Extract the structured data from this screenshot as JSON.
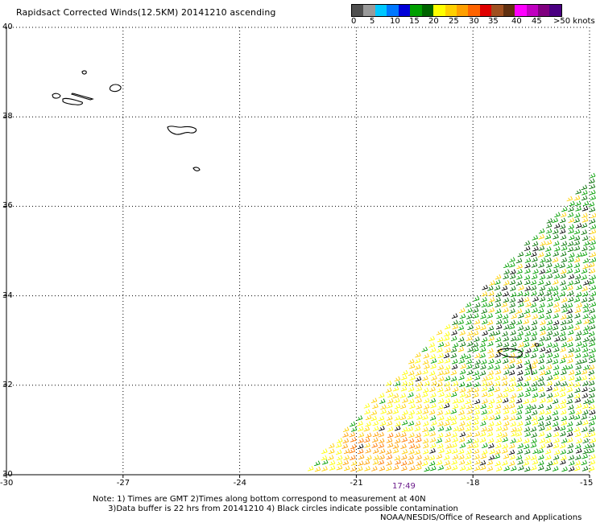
{
  "title": "Rapidsact Corrected Winds(12.5KM) 20141210 ascending",
  "colors": {
    "scale": [
      "#505050",
      "#9a9a9a",
      "#00c8ff",
      "#0078ff",
      "#0000d8",
      "#00a000",
      "#006400",
      "#ffff00",
      "#ffd000",
      "#ffa000",
      "#ff6400",
      "#e00000",
      "#a05020",
      "#603010",
      "#ff00ff",
      "#c000c0",
      "#800080",
      "#4b0082"
    ]
  },
  "scale_labels": [
    "0",
    "5",
    "10",
    "15",
    "20",
    "25",
    "30",
    "35",
    "40",
    "45",
    ">50 knots"
  ],
  "axes": {
    "lat_labels": [
      "40",
      "38",
      "36",
      "34",
      "32",
      "30"
    ],
    "lon_labels": [
      "-30",
      "-27",
      "-24",
      "-21",
      "-18",
      "-15"
    ]
  },
  "time_label": "17:49",
  "notes": [
    "Note: 1) Times are GMT 2)Times along bottom correspond to measurement at 40N",
    "      3)Data buffer is 22 hrs from 20141210 4) Black circles indicate possible contamination"
  ],
  "credit": "NOAA/NESDIS/Office of Research and Applications"
}
